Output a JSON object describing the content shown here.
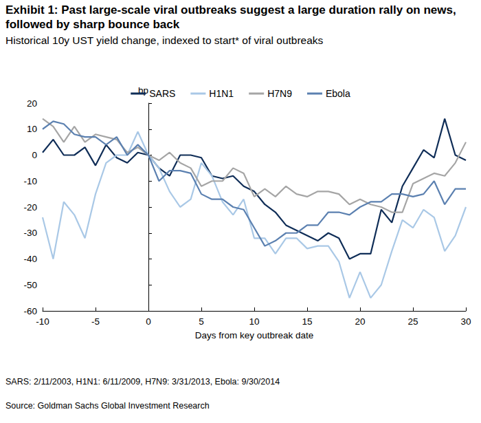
{
  "chart_data": {
    "type": "line",
    "title": "Exhibit 1: Past large-scale viral outbreaks suggest a large duration rally on news, followed by sharp bounce back",
    "subtitle": "Historical 10y UST yield change, indexed to start* of viral outbreaks",
    "y_label": "bp",
    "x_label": "Days from key outbreak date",
    "footnote": "SARS: 2/11/2003, H1N1: 6/11/2009, H7N9: 3/31/2013, Ebola: 9/30/2014",
    "source": "Source: Goldman Sachs Global Investment Research",
    "x": [
      -10,
      -9,
      -8,
      -7,
      -6,
      -5,
      -4,
      -3,
      -2,
      -1,
      0,
      1,
      2,
      3,
      4,
      5,
      6,
      7,
      8,
      9,
      10,
      11,
      12,
      13,
      14,
      15,
      16,
      17,
      18,
      19,
      20,
      21,
      22,
      23,
      24,
      25,
      26,
      27,
      28,
      29,
      30
    ],
    "series": [
      {
        "name": "SARS",
        "color": "#0f2d57",
        "values": [
          1,
          6,
          0,
          0,
          3,
          -4,
          4,
          -1,
          -3,
          1,
          0,
          -5,
          -8,
          0,
          0,
          -1,
          -8,
          -9,
          -8,
          -12,
          -14,
          -19,
          -22,
          -27,
          -29,
          -31,
          -33,
          -30,
          -32,
          -40,
          -38,
          -38,
          -21,
          -26,
          -12,
          -5,
          2,
          -1,
          14,
          0,
          -2
        ]
      },
      {
        "name": "H1N1",
        "color": "#a9c8e6",
        "values": [
          -24,
          -40,
          -18,
          -23,
          -32,
          -15,
          -3,
          0,
          0,
          9,
          0,
          -5,
          -14,
          -20,
          -17,
          -3,
          -8,
          -18,
          -23,
          -17,
          -32,
          -32,
          -38,
          -32,
          -32,
          -36,
          -35,
          -35,
          -41,
          -55,
          -45,
          -55,
          -50,
          -37,
          -25,
          -28,
          -21,
          -24,
          -37,
          -31,
          -20
        ]
      },
      {
        "name": "H7N9",
        "color": "#a5a5a5",
        "values": [
          14,
          11,
          5,
          11,
          5,
          8,
          7,
          6,
          1,
          3,
          0,
          -2,
          1,
          -3,
          -5,
          -12,
          -10,
          -10,
          -5,
          -7,
          -16,
          -13,
          -16,
          -12,
          -15,
          -16,
          -14,
          -14,
          -15,
          -19,
          -17,
          -19,
          -20,
          -22,
          -22,
          -11,
          -9,
          -7,
          -8,
          -3,
          5
        ]
      },
      {
        "name": "Ebola",
        "color": "#5b80b0",
        "values": [
          10,
          13,
          12,
          8,
          7,
          7,
          4,
          7,
          0,
          4,
          0,
          -10,
          -6,
          -6,
          -7,
          -15,
          -17,
          -17,
          -20,
          -21,
          -28,
          -35,
          -33,
          -30,
          -30,
          -27,
          -27,
          -22,
          -22,
          -23,
          -20,
          -18,
          -18,
          -15,
          -15,
          -16,
          -15,
          -10,
          -19,
          -13,
          -13
        ]
      }
    ],
    "xlim": [
      -10,
      30
    ],
    "xticks": [
      -10,
      -5,
      0,
      5,
      10,
      15,
      20,
      25,
      30
    ],
    "ylim": [
      -60,
      20
    ],
    "yticks": [
      -60,
      -50,
      -40,
      -30,
      -20,
      -10,
      0,
      10,
      20
    ],
    "grid": false,
    "legend": "top"
  }
}
